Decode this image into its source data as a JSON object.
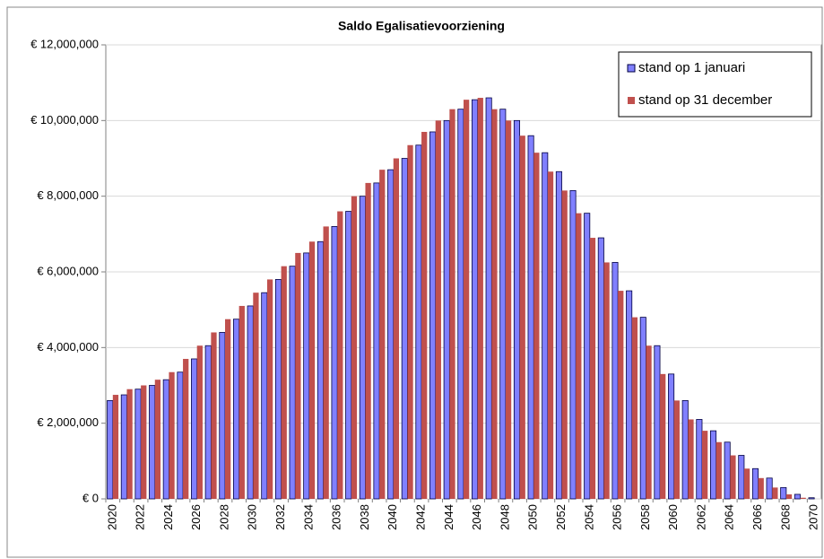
{
  "chart_data": {
    "type": "bar",
    "title": "Saldo Egalisatievoorziening",
    "categories": [
      "2020",
      null,
      "2022",
      null,
      "2024",
      null,
      "2026",
      null,
      "2028",
      null,
      "2030",
      null,
      "2032",
      null,
      "2034",
      null,
      "2036",
      null,
      "2038",
      null,
      "2040",
      null,
      "2042",
      null,
      "2044",
      null,
      "2046",
      null,
      "2048",
      null,
      "2050",
      null,
      "2052",
      null,
      "2054",
      null,
      "2056",
      null,
      "2058",
      null,
      "2060",
      null,
      "2062",
      null,
      "2064",
      null,
      "2066",
      null,
      "2068",
      null,
      "2070"
    ],
    "series": [
      {
        "name": "stand op 1 januari",
        "color": "#8080ff",
        "values": [
          2600000,
          2750000,
          2900000,
          3000000,
          3150000,
          3350000,
          3700000,
          4050000,
          4400000,
          4750000,
          5100000,
          5450000,
          5800000,
          6150000,
          6500000,
          6800000,
          7200000,
          7600000,
          8000000,
          8350000,
          8700000,
          9000000,
          9350000,
          9700000,
          10000000,
          10300000,
          10550000,
          10600000,
          10300000,
          10000000,
          9600000,
          9150000,
          8650000,
          8150000,
          7550000,
          6900000,
          6250000,
          5500000,
          4800000,
          4050000,
          3300000,
          2600000,
          2100000,
          1800000,
          1500000,
          1150000,
          800000,
          550000,
          300000,
          120000,
          30000
        ]
      },
      {
        "name": "stand op 31 december",
        "color": "#c0504d",
        "values": [
          2750000,
          2900000,
          3000000,
          3150000,
          3350000,
          3700000,
          4050000,
          4400000,
          4750000,
          5100000,
          5450000,
          5800000,
          6150000,
          6500000,
          6800000,
          7200000,
          7600000,
          8000000,
          8350000,
          8700000,
          9000000,
          9350000,
          9700000,
          10000000,
          10300000,
          10550000,
          10600000,
          10300000,
          10000000,
          9600000,
          9150000,
          8650000,
          8150000,
          7550000,
          6900000,
          6250000,
          5500000,
          4800000,
          4050000,
          3300000,
          2600000,
          2100000,
          1800000,
          1500000,
          1150000,
          800000,
          550000,
          300000,
          120000,
          30000,
          0
        ]
      }
    ],
    "ylim": [
      0,
      12000000
    ],
    "yticks": [
      {
        "value": 0,
        "label": "€ 0"
      },
      {
        "value": 2000000,
        "label": "€ 2,000,000"
      },
      {
        "value": 4000000,
        "label": "€ 4,000,000"
      },
      {
        "value": 6000000,
        "label": "€ 6,000,000"
      },
      {
        "value": 8000000,
        "label": "€ 8,000,000"
      },
      {
        "value": 10000000,
        "label": "€ 10,000,000"
      },
      {
        "value": 12000000,
        "label": "€ 12,000,000"
      }
    ],
    "grid": true,
    "legend": "top-right"
  }
}
